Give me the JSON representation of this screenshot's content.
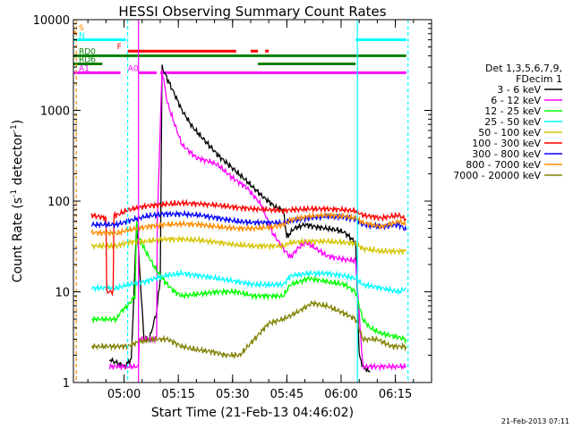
{
  "chart_data": {
    "type": "line",
    "title": "HESSI Observing Summary Count Rates",
    "xlabel": "Start Time (21-Feb-13 04:46:02)",
    "ylabel_main": "Count Rate (s",
    "ylabel_sup1": "-1",
    "ylabel_mid": " detector",
    "ylabel_sup2": "-1",
    "ylabel_end": ")",
    "ylog": true,
    "ylim": [
      1,
      10000
    ],
    "xlim_minutes_after_0446": [
      0,
      99
    ],
    "yticks": [
      {
        "value": 1,
        "label": "1"
      },
      {
        "value": 10,
        "label": "10"
      },
      {
        "value": 100,
        "label": "100"
      },
      {
        "value": 1000,
        "label": "1000"
      },
      {
        "value": 10000,
        "label": "10000"
      }
    ],
    "xticks": [
      {
        "minute": 14,
        "label": "05:00"
      },
      {
        "minute": 29,
        "label": "05:15"
      },
      {
        "minute": 44,
        "label": "05:30"
      },
      {
        "minute": 59,
        "label": "05:45"
      },
      {
        "minute": 74,
        "label": "06:00"
      },
      {
        "minute": 89,
        "label": "06:15"
      }
    ],
    "legend": {
      "header": [
        "Det 1,3,5,6,7,9,",
        "FDecim 1"
      ],
      "placement": "right",
      "entries": [
        {
          "label": "3 - 6 keV",
          "color": "#000000"
        },
        {
          "label": "6 - 12 keV",
          "color": "#ff00ff"
        },
        {
          "label": "12 - 25 keV",
          "color": "#00ff00"
        },
        {
          "label": "25 - 50 keV",
          "color": "#00ffff"
        },
        {
          "label": "50 - 100 keV",
          "color": "#d4c400"
        },
        {
          "label": "100 - 300 keV",
          "color": "#ff0000"
        },
        {
          "label": "300 - 800 keV",
          "color": "#0000ff"
        },
        {
          "label": "800 - 7000 keV",
          "color": "#ff8c00"
        },
        {
          "label": "7000 - 20000 keV",
          "color": "#808000"
        }
      ]
    },
    "series": [
      {
        "name": "3 - 6 keV",
        "color": "#000000",
        "x": [
          10,
          14,
          16,
          17.5,
          19.5,
          21,
          23,
          24,
          24.5,
          26,
          28,
          30,
          33,
          36,
          40,
          44,
          48,
          52,
          56,
          58,
          59,
          61,
          64,
          67,
          70,
          73,
          75,
          78,
          79,
          80,
          82
        ],
        "y": [
          1.8,
          1.5,
          1.8,
          60,
          3,
          3,
          6,
          14,
          3000,
          2200,
          1500,
          1000,
          650,
          480,
          320,
          230,
          165,
          115,
          85,
          80,
          40,
          50,
          55,
          52,
          50,
          48,
          45,
          35,
          2,
          1.5,
          1.3
        ]
      },
      {
        "name": "6 - 12 keV",
        "color": "#ff00ff",
        "x": [
          10,
          18,
          18.2,
          23,
          23.2,
          24.5,
          26,
          28,
          30,
          34,
          38,
          40,
          44,
          48,
          52,
          55,
          58,
          60,
          62,
          64,
          66,
          70,
          74,
          78,
          80,
          85,
          92
        ],
        "y": [
          1.5,
          1.5,
          3,
          3,
          60,
          2800,
          1200,
          700,
          420,
          300,
          270,
          250,
          180,
          140,
          90,
          45,
          30,
          24,
          30,
          35,
          32,
          25,
          23,
          22,
          1.5,
          1.5,
          1.5
        ]
      },
      {
        "name": "12 - 25 keV",
        "color": "#00ff00",
        "x": [
          5,
          12,
          13,
          15,
          17,
          17.5,
          18,
          20,
          22,
          24,
          26,
          28,
          30,
          35,
          40,
          45,
          50,
          55,
          58,
          60,
          65,
          70,
          75,
          78,
          80,
          82,
          85,
          92
        ],
        "y": [
          5,
          5,
          6,
          7,
          9,
          60,
          40,
          28,
          20,
          15,
          12,
          10,
          9,
          9.5,
          10,
          10,
          9,
          9,
          9,
          12,
          14,
          13,
          12,
          10,
          5,
          4,
          3.5,
          3
        ]
      },
      {
        "name": "25 - 50 keV",
        "color": "#00ffff",
        "x": [
          5,
          12,
          15,
          20,
          25,
          30,
          35,
          40,
          45,
          50,
          55,
          58,
          60,
          65,
          70,
          75,
          78,
          80,
          85,
          90,
          92
        ],
        "y": [
          11,
          11,
          12,
          13,
          15,
          16,
          15,
          14,
          13,
          12,
          12,
          12,
          15,
          16,
          16,
          15,
          14,
          12,
          11,
          10,
          11
        ]
      },
      {
        "name": "50 - 100 keV",
        "color": "#d4c400",
        "x": [
          5,
          12,
          15,
          20,
          25,
          30,
          35,
          40,
          45,
          50,
          55,
          58,
          60,
          65,
          70,
          75,
          78,
          80,
          85,
          90,
          92
        ],
        "y": [
          32,
          32,
          35,
          36,
          38,
          38,
          37,
          35,
          33,
          32,
          32,
          32,
          35,
          36,
          36,
          35,
          34,
          30,
          28,
          28,
          28
        ]
      },
      {
        "name": "100 - 300 keV",
        "color": "#ff0000",
        "x": [
          5,
          9,
          9.2,
          11,
          11.2,
          12,
          15,
          20,
          25,
          30,
          35,
          40,
          45,
          50,
          55,
          58,
          60,
          65,
          70,
          75,
          78,
          80,
          85,
          90,
          92
        ],
        "y": [
          70,
          65,
          10,
          10,
          70,
          70,
          80,
          88,
          92,
          95,
          93,
          90,
          85,
          82,
          80,
          78,
          80,
          82,
          82,
          80,
          78,
          70,
          65,
          70,
          62
        ]
      },
      {
        "name": "300 - 800 keV",
        "color": "#0000ff",
        "x": [
          5,
          12,
          15,
          20,
          25,
          30,
          35,
          40,
          45,
          50,
          55,
          58,
          60,
          65,
          70,
          75,
          78,
          80,
          85,
          90,
          92
        ],
        "y": [
          55,
          55,
          60,
          68,
          72,
          72,
          70,
          65,
          60,
          58,
          58,
          57,
          60,
          65,
          68,
          66,
          63,
          55,
          52,
          55,
          48
        ]
      },
      {
        "name": "800 - 7000 keV",
        "color": "#ff8c00",
        "x": [
          5,
          12,
          15,
          20,
          25,
          30,
          35,
          40,
          45,
          50,
          55,
          58,
          60,
          65,
          70,
          75,
          78,
          80,
          85,
          90,
          92
        ],
        "y": [
          45,
          44,
          48,
          52,
          55,
          56,
          55,
          52,
          50,
          50,
          52,
          55,
          62,
          68,
          70,
          68,
          65,
          58,
          52,
          60,
          55
        ]
      },
      {
        "name": "7000 - 20000 keV",
        "color": "#808000",
        "x": [
          5,
          12,
          15,
          18,
          22,
          26,
          30,
          34,
          38,
          42,
          46,
          50,
          54,
          58,
          62,
          66,
          70,
          74,
          78,
          80,
          84,
          88,
          92
        ],
        "y": [
          2.5,
          2.5,
          2.5,
          2.8,
          3,
          3,
          2.5,
          2.3,
          2.2,
          2,
          2,
          3,
          4.5,
          5,
          6,
          7.5,
          7,
          6,
          5,
          3,
          3,
          2.5,
          2.5
        ]
      }
    ],
    "flags": [
      {
        "label": "S",
        "color": "#ff8c00",
        "y": 7300,
        "segments": [
          [
            0,
            0.7
          ]
        ]
      },
      {
        "label": "N",
        "color": "#00ffff",
        "y": 6000,
        "segments": [
          [
            0,
            14.5
          ],
          [
            78,
            92
          ]
        ]
      },
      {
        "label": "F",
        "color": "#ff0000",
        "y": 4500,
        "segments": [
          [
            15,
            45
          ],
          [
            49,
            51
          ],
          [
            53,
            54
          ]
        ]
      },
      {
        "label": "RD0",
        "color": "#008000",
        "y": 4000,
        "segments": [
          [
            0,
            14
          ],
          [
            14,
            92
          ]
        ]
      },
      {
        "label": "RD6",
        "color": "#008000",
        "y": 3250,
        "segments": [
          [
            0,
            8
          ],
          [
            51,
            78
          ]
        ]
      },
      {
        "label": "A1",
        "color": "#ff00ff",
        "y": 2600,
        "segments": [
          [
            0,
            13
          ],
          [
            24,
            92
          ]
        ]
      },
      {
        "label": "A0",
        "color": "#ff00ff",
        "y": 2600,
        "segments": [
          [
            18,
            23
          ]
        ]
      }
    ],
    "vertical_markers": [
      {
        "minute": 0.8,
        "color": "#ff8c00",
        "style": "dashed"
      },
      {
        "minute": 15,
        "color": "#00ffff",
        "style": "dashed"
      },
      {
        "minute": 18,
        "color": "#ff00ff",
        "style": "solid"
      },
      {
        "minute": 78.5,
        "color": "#00ffff",
        "style": "solid"
      },
      {
        "minute": 92.5,
        "color": "#00ffff",
        "style": "dashed"
      }
    ],
    "grid": false,
    "timestamp": "21-Feb-2013 07:11"
  }
}
